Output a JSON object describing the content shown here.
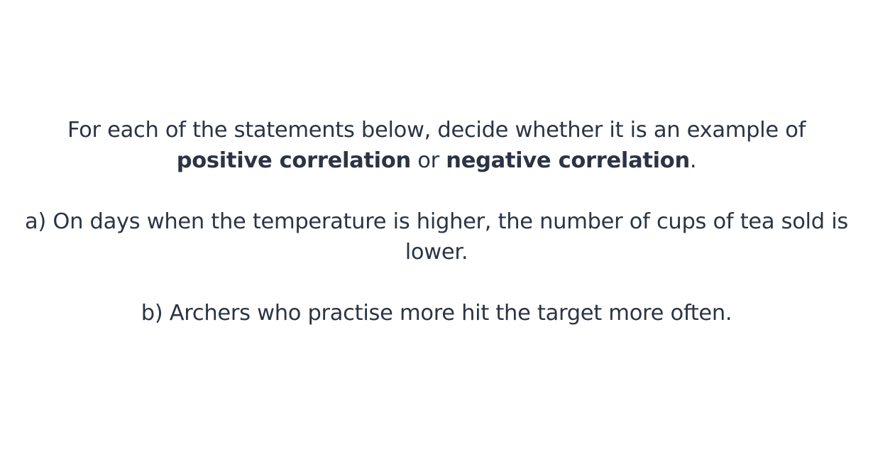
{
  "instructions": {
    "prefix": "For each of the statements below, decide whether it is an example of ",
    "term_positive": "positive correlation",
    "connector": " or ",
    "term_negative": "negative correlation",
    "suffix": "."
  },
  "statements": [
    {
      "text": "a) On days when the temperature is higher, the number of cups of tea sold is lower."
    },
    {
      "text": "b) Archers who practise more hit the target more often."
    }
  ]
}
